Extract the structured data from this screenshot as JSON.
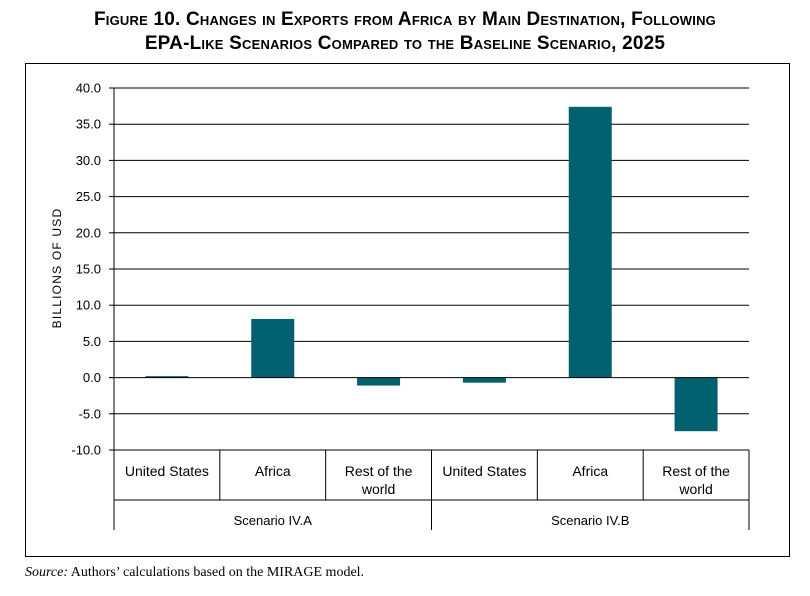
{
  "title_lines": [
    "Figure 10. Changes in Exports from Africa by Main Destination, Following",
    "EPA-Like Scenarios Compared to the Baseline Scenario, 2025"
  ],
  "source": {
    "label": "Source:",
    "text": " Authors’ calculations based on the MIRAGE model."
  },
  "colors": {
    "bar": "#00606d",
    "grid": "#000000"
  },
  "chart_data": {
    "type": "bar",
    "title": "Figure 10. Changes in Exports from Africa by Main Destination, Following EPA-Like Scenarios Compared to the Baseline Scenario, 2025",
    "ylabel": "BILLIONS OF USD",
    "xlabel": "",
    "ylim": [
      -10.0,
      40.0
    ],
    "yticks": [
      "40.0",
      "35.0",
      "30.0",
      "25.0",
      "20.0",
      "15.0",
      "10.0",
      "5.0",
      "0.0",
      "-5.0",
      "-10.0"
    ],
    "groups": [
      {
        "name": "Scenario IV.A",
        "categories": [
          "United States",
          "Africa",
          "Rest of the world"
        ]
      },
      {
        "name": "Scenario IV.B",
        "categories": [
          "United States",
          "Africa",
          "Rest of the world"
        ]
      }
    ],
    "categories": [
      "United States",
      "Africa",
      "Rest of the world",
      "United States",
      "Africa",
      "Rest of the world"
    ],
    "values": [
      0.2,
      8.1,
      -1.1,
      -0.7,
      37.4,
      -7.4
    ],
    "grid": true,
    "legend": "none"
  }
}
